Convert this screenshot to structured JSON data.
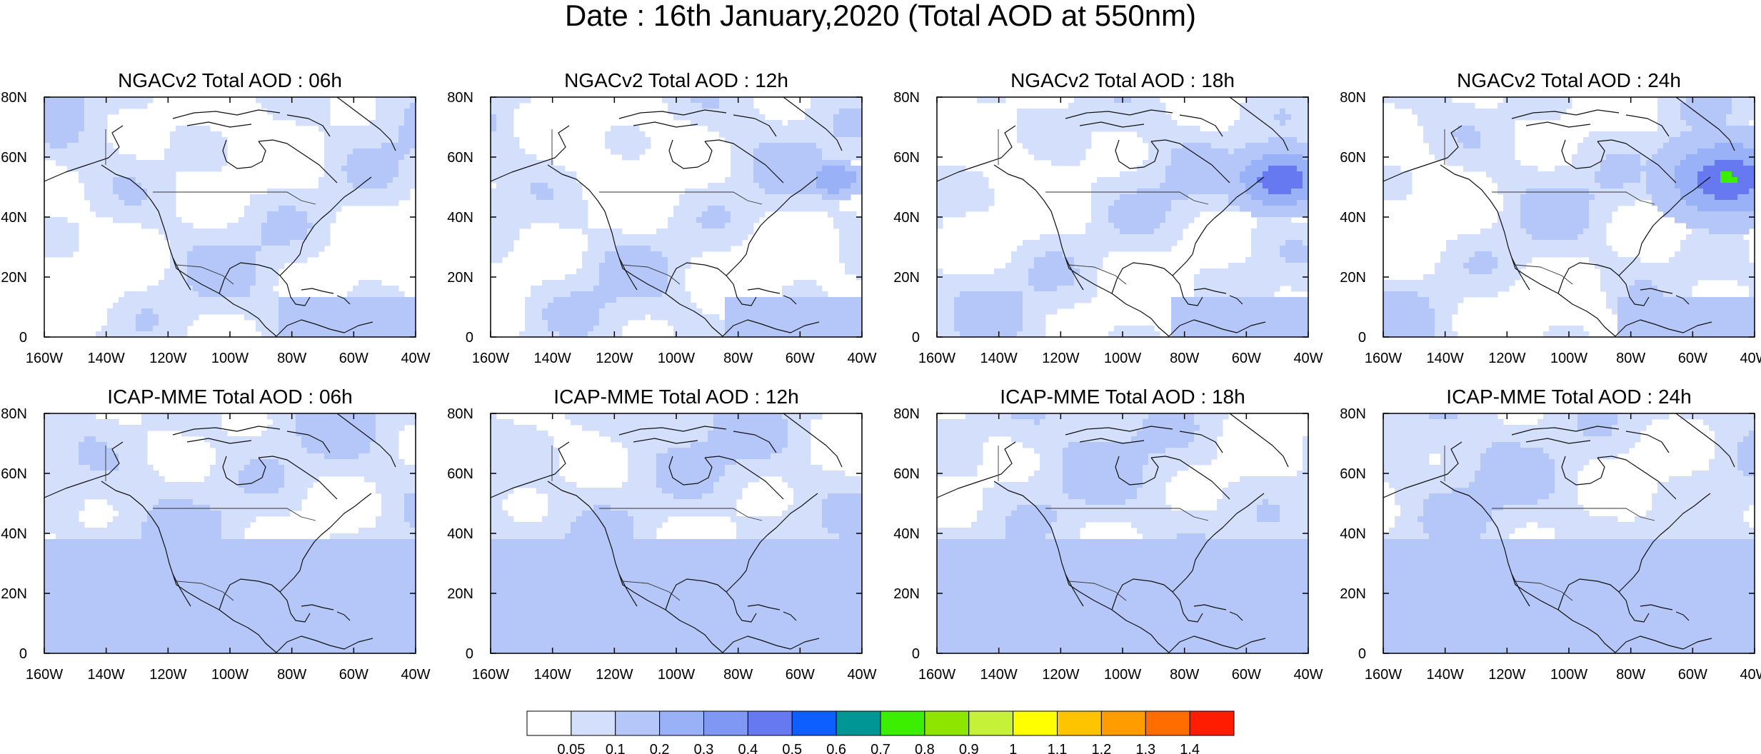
{
  "figure_title": "Date : 16th January,2020 (Total AOD at 550nm)",
  "panels": [
    {
      "title": "NGACv2 Total AOD : 06h",
      "model": "NGACv2",
      "hour": 6
    },
    {
      "title": "NGACv2 Total AOD : 12h",
      "model": "NGACv2",
      "hour": 12
    },
    {
      "title": "NGACv2 Total AOD : 18h",
      "model": "NGACv2",
      "hour": 18
    },
    {
      "title": "NGACv2 Total AOD : 24h",
      "model": "NGACv2",
      "hour": 24
    },
    {
      "title": "ICAP-MME Total AOD : 06h",
      "model": "ICAP-MME",
      "hour": 6
    },
    {
      "title": "ICAP-MME Total AOD : 12h",
      "model": "ICAP-MME",
      "hour": 12
    },
    {
      "title": "ICAP-MME Total AOD : 18h",
      "model": "ICAP-MME",
      "hour": 18
    },
    {
      "title": "ICAP-MME Total AOD : 24h",
      "model": "ICAP-MME",
      "hour": 24
    }
  ],
  "axes": {
    "lon_range": [
      -160,
      -40
    ],
    "lat_range": [
      0,
      80
    ],
    "lon_ticks": [
      "160W",
      "140W",
      "120W",
      "100W",
      "80W",
      "60W",
      "40W"
    ],
    "lat_ticks": [
      "0",
      "20N",
      "40N",
      "60N",
      "80N"
    ]
  },
  "colorbar": {
    "labels": [
      "0.05",
      "0.1",
      "0.2",
      "0.3",
      "0.4",
      "0.5",
      "0.6",
      "0.7",
      "0.8",
      "0.9",
      "1",
      "1.1",
      "1.2",
      "1.3",
      "1.4"
    ],
    "colors": [
      "#ffffff",
      "#d4e0fb",
      "#b4c7f8",
      "#98b1f7",
      "#7f98f3",
      "#6679f0",
      "#0d60ff",
      "#009696",
      "#3cee00",
      "#8ee600",
      "#c5f238",
      "#ffff00",
      "#ffc400",
      "#ff9c00",
      "#ff6d00",
      "#ff1d00"
    ]
  }
}
